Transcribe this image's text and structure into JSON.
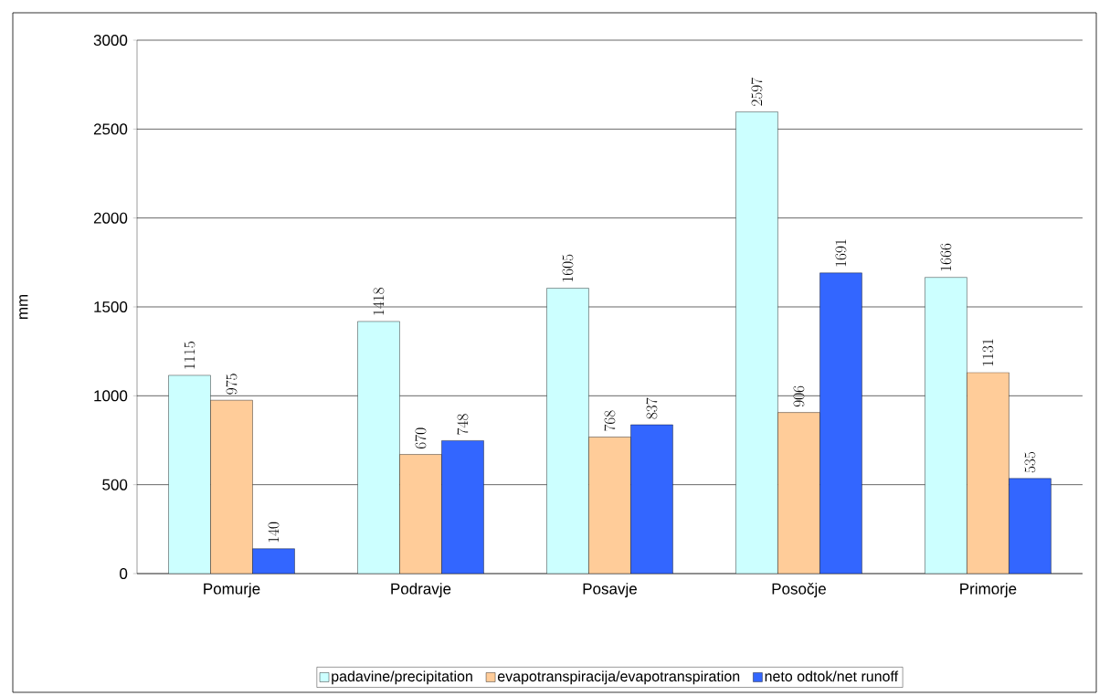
{
  "chart_data": {
    "type": "bar",
    "ylabel": "mm",
    "categories": [
      "Pomurje",
      "Podravje",
      "Posavje",
      "Posočje",
      "Primorje"
    ],
    "series": [
      {
        "name": "padavine/precipitation",
        "color": "#ccffff",
        "values": [
          1115,
          1418,
          1605,
          2597,
          1666
        ]
      },
      {
        "name": "evapotranspiracija/evapotranspiration",
        "color": "#ffcc99",
        "values": [
          975,
          670,
          768,
          906,
          1131
        ]
      },
      {
        "name": "neto odtok/net runoff",
        "color": "#3366ff",
        "values": [
          140,
          748,
          837,
          1691,
          535
        ]
      }
    ],
    "ylim": [
      0,
      3000
    ],
    "yticks": [
      0,
      500,
      1000,
      1500,
      2000,
      2500,
      3000
    ],
    "grid": "y",
    "legend": "bottom",
    "data_labels": true
  }
}
